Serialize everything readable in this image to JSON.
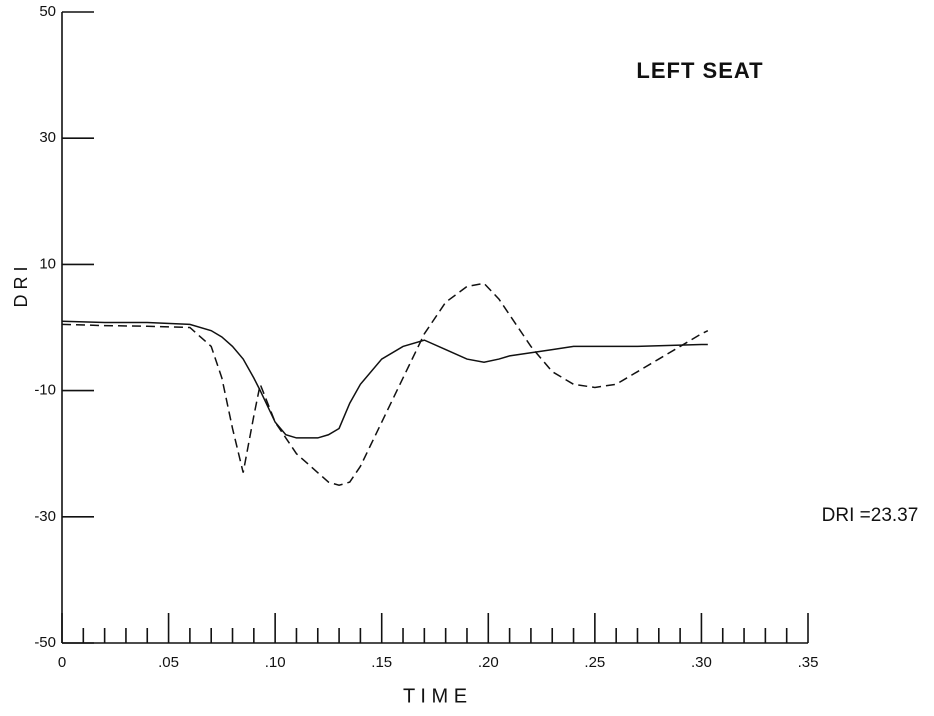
{
  "chart_data": {
    "type": "line",
    "annotations": [
      "LEFT SEAT",
      "DRI =23.37"
    ],
    "x_label": "T I M E",
    "y_label": "D R I",
    "x": [
      0,
      0.02,
      0.04,
      0.06,
      0.07,
      0.075,
      0.08,
      0.085,
      0.09,
      0.093,
      0.1,
      0.105,
      0.11,
      0.12,
      0.125,
      0.13,
      0.135,
      0.14,
      0.15,
      0.16,
      0.17,
      0.18,
      0.19,
      0.198,
      0.205,
      0.21,
      0.22,
      0.23,
      0.24,
      0.25,
      0.26,
      0.27,
      0.28,
      0.29,
      0.3,
      0.303
    ],
    "series": [
      {
        "color": "#111111",
        "dash": true,
        "values": [
          0.5,
          0.3,
          0.2,
          0,
          -3,
          -8,
          -16,
          -23,
          -14,
          -9,
          -15,
          -17.5,
          -20,
          -23,
          -24.5,
          -25,
          -24.5,
          -22,
          -15,
          -8,
          -1,
          4,
          6.5,
          7,
          4.5,
          2,
          -3,
          -7,
          -9,
          -9.5,
          -9,
          -7,
          -5,
          -3,
          -1,
          -0.5
        ]
      },
      {
        "color": "#111111",
        "dash": false,
        "values": [
          1,
          0.8,
          0.8,
          0.5,
          -0.5,
          -1.5,
          -3,
          -5,
          -8,
          -10,
          -15,
          -17,
          -17.5,
          -17.5,
          -17,
          -16,
          -12,
          -9,
          -5,
          -3,
          -2,
          -3.5,
          -5,
          -5.5,
          -5,
          -4.5,
          -4,
          -3.5,
          -3,
          -3,
          -3,
          -3,
          -2.9,
          -2.8,
          -2.7,
          -2.7
        ]
      }
    ],
    "xlim": [
      0,
      0.35
    ],
    "xticks": [
      0,
      {
        "value": 0.05,
        "label": ".05"
      },
      {
        "value": 0.1,
        "label": ".10"
      },
      {
        "value": 0.15,
        "label": ".15"
      },
      {
        "value": 0.2,
        "label": ".20"
      },
      {
        "value": 0.25,
        "label": ".25"
      },
      {
        "value": 0.3,
        "label": ".30"
      },
      {
        "value": 0.35,
        "label": ".35"
      }
    ],
    "xminor_ticks": [
      0.01,
      0.02,
      0.03,
      0.04,
      0.06,
      0.07,
      0.08,
      0.09,
      0.11,
      0.12,
      0.13,
      0.14,
      0.16,
      0.17,
      0.18,
      0.19,
      0.21,
      0.22,
      0.23,
      0.24,
      0.26,
      0.27,
      0.28,
      0.29,
      0.31,
      0.32,
      0.33,
      0.34
    ],
    "ylim": [
      -50,
      50
    ],
    "yticks": [
      50,
      30,
      10,
      -10,
      -30,
      -50
    ]
  }
}
